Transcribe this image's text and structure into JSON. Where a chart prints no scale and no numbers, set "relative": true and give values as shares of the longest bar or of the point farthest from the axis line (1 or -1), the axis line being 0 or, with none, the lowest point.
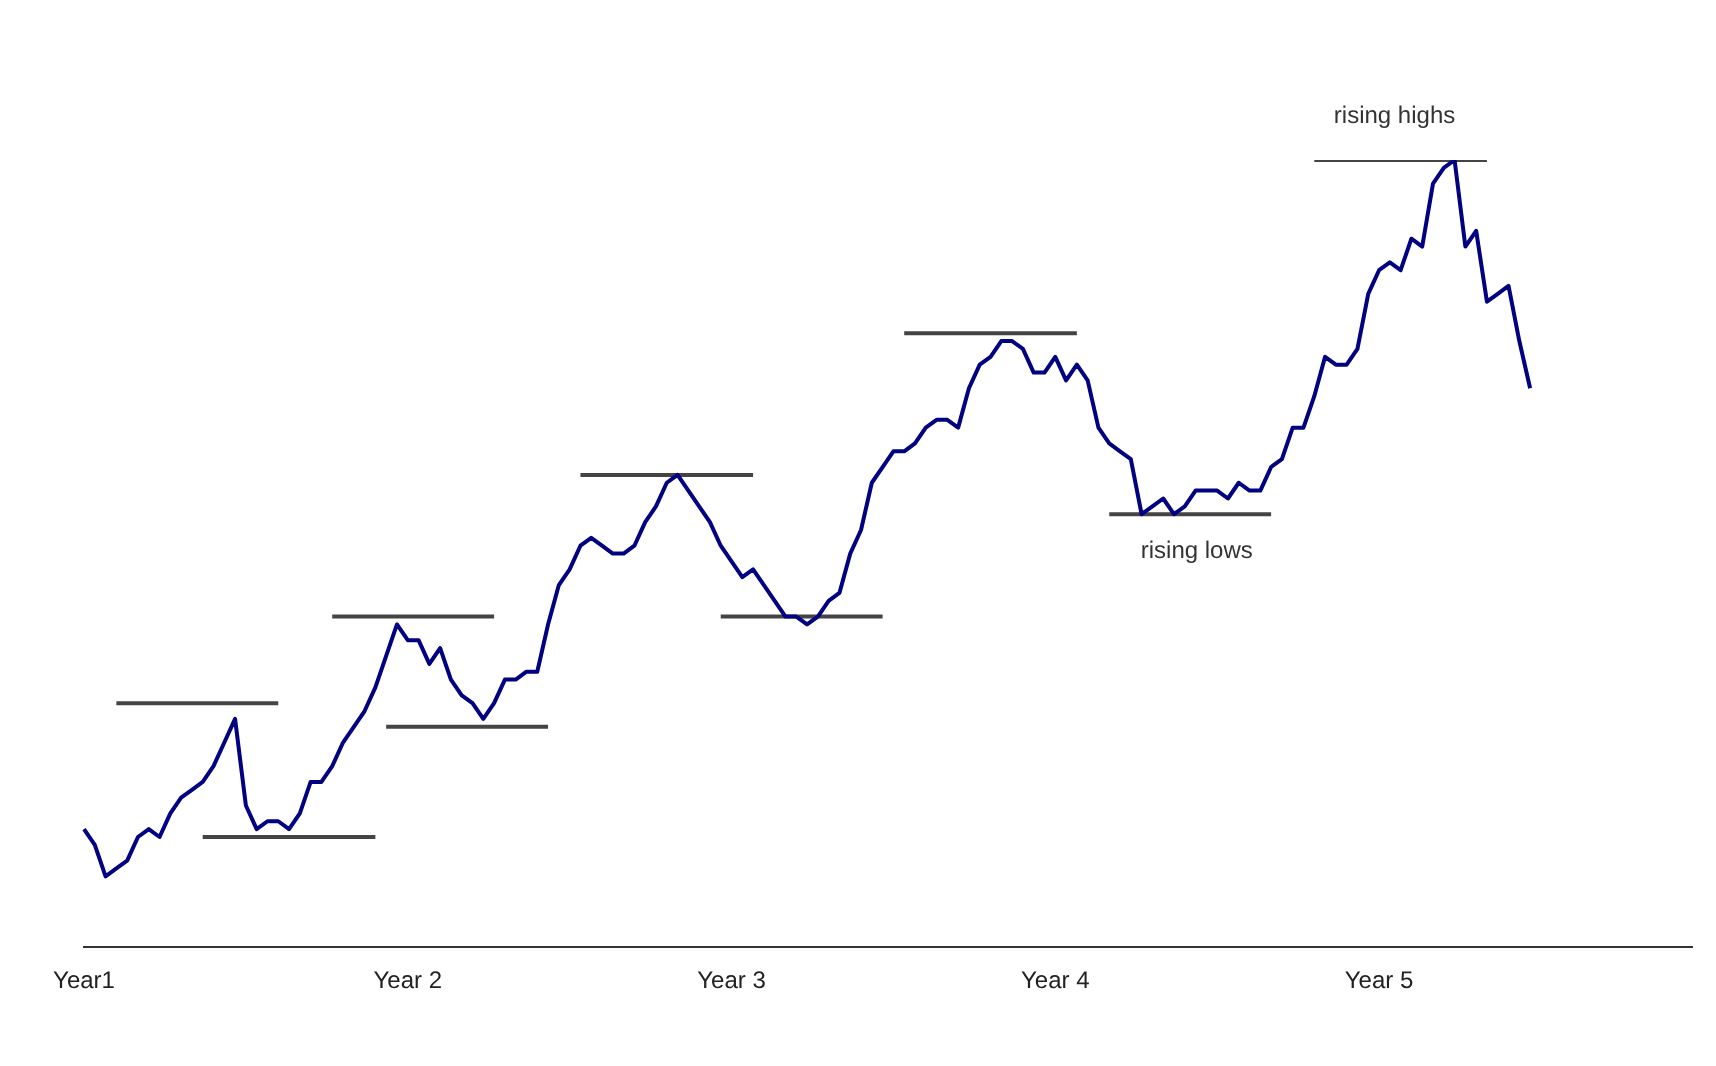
{
  "chart_data": {
    "type": "line",
    "relative": true,
    "categories": [
      "Year1",
      null,
      null,
      null,
      null,
      null,
      null,
      null,
      null,
      null,
      null,
      null,
      null,
      null,
      null,
      null,
      null,
      null,
      null,
      null,
      null,
      null,
      null,
      null,
      null,
      null,
      null,
      null,
      null,
      null,
      "Year 2",
      null,
      null,
      null,
      null,
      null,
      null,
      null,
      null,
      null,
      null,
      null,
      null,
      null,
      null,
      null,
      null,
      null,
      null,
      null,
      null,
      null,
      null,
      null,
      null,
      null,
      null,
      null,
      null,
      null,
      "Year 3",
      null,
      null,
      null,
      null,
      null,
      null,
      null,
      null,
      null,
      null,
      null,
      null,
      null,
      null,
      null,
      null,
      null,
      null,
      null,
      null,
      null,
      null,
      null,
      null,
      null,
      null,
      null,
      null,
      null,
      "Year 4",
      null,
      null,
      null,
      null,
      null,
      null,
      null,
      null,
      null,
      null,
      null,
      null,
      null,
      null,
      null,
      null,
      null,
      null,
      null,
      null,
      null,
      null,
      null,
      null,
      null,
      null,
      null,
      null,
      null,
      "Year 5",
      null,
      null,
      null,
      null,
      null,
      null,
      null,
      null,
      null,
      null,
      null,
      null,
      null,
      null,
      null,
      null,
      null,
      null,
      null,
      null,
      null,
      null,
      null,
      null,
      null,
      null,
      null,
      null,
      null
    ],
    "grid": false,
    "legend": false,
    "marker": "none",
    "line_style": "solid",
    "series": [
      {
        "color": "#000080",
        "values": [
          0.15,
          0.13,
          0.09,
          0.1,
          0.11,
          0.14,
          0.15,
          0.14,
          0.17,
          0.19,
          0.2,
          0.21,
          0.23,
          0.26,
          0.29,
          0.18,
          0.15,
          0.16,
          0.16,
          0.15,
          0.17,
          0.21,
          0.21,
          0.23,
          0.26,
          0.28,
          0.3,
          0.33,
          0.37,
          0.41,
          0.39,
          0.39,
          0.36,
          0.38,
          0.34,
          0.32,
          0.31,
          0.29,
          0.31,
          0.34,
          0.34,
          0.35,
          0.35,
          0.41,
          0.46,
          0.48,
          0.51,
          0.52,
          0.51,
          0.5,
          0.5,
          0.51,
          0.54,
          0.56,
          0.59,
          0.6,
          0.58,
          0.56,
          0.54,
          0.51,
          0.49,
          0.47,
          0.48,
          0.46,
          0.44,
          0.42,
          0.42,
          0.41,
          0.42,
          0.44,
          0.45,
          0.5,
          0.53,
          0.59,
          0.61,
          0.63,
          0.63,
          0.64,
          0.66,
          0.67,
          0.67,
          0.66,
          0.71,
          0.74,
          0.75,
          0.77,
          0.77,
          0.76,
          0.73,
          0.73,
          0.75,
          0.72,
          0.74,
          0.72,
          0.66,
          0.64,
          0.63,
          0.62,
          0.55,
          0.56,
          0.57,
          0.55,
          0.56,
          0.58,
          0.58,
          0.58,
          0.57,
          0.59,
          0.58,
          0.58,
          0.61,
          0.62,
          0.66,
          0.66,
          0.7,
          0.75,
          0.74,
          0.74,
          0.76,
          0.83,
          0.86,
          0.87,
          0.86,
          0.9,
          0.89,
          0.97,
          0.99,
          1.0,
          0.89,
          0.91,
          0.82,
          0.83,
          0.84,
          0.77,
          0.71,
          null,
          null,
          null,
          null,
          null,
          null,
          null,
          null,
          null,
          null,
          null,
          null,
          null,
          null,
          null
        ]
      },
      {
        "type": "line",
        "color": "#444444",
        "values": [
          null,
          null,
          null,
          0.31,
          0.31,
          0.31,
          0.31,
          0.31,
          0.31,
          0.31,
          0.31,
          0.31,
          0.31,
          0.31,
          0.31,
          0.31,
          0.31,
          0.31,
          0.31,
          null,
          null,
          null,
          null,
          null,
          null,
          null,
          null,
          null,
          null,
          null,
          null,
          null,
          null,
          null,
          null,
          null,
          null,
          null,
          null,
          null,
          null,
          null,
          null,
          null,
          null,
          null,
          null,
          null,
          null,
          null,
          null,
          null,
          null,
          null,
          null,
          null,
          null,
          null,
          null,
          null,
          null,
          null,
          null,
          null,
          null,
          null,
          null,
          null,
          null,
          null,
          null,
          null,
          null,
          null,
          null,
          null,
          null,
          null,
          null,
          null,
          null,
          null,
          null,
          null,
          null,
          null,
          null,
          null,
          null,
          null,
          null,
          null,
          null,
          null,
          null,
          null,
          null,
          null,
          null,
          null,
          null,
          null,
          null,
          null,
          null,
          null,
          null,
          null,
          null,
          null,
          null,
          null,
          null,
          null,
          null,
          null,
          null,
          null,
          null,
          null,
          null,
          null,
          null,
          null,
          null,
          null,
          null,
          null,
          null,
          null,
          null,
          null,
          null,
          null,
          null,
          null,
          null,
          null,
          null,
          null,
          null,
          null,
          null,
          null,
          null,
          null,
          null,
          null,
          null,
          null
        ]
      },
      {
        "type": "line",
        "color": "#444444",
        "values": [
          null,
          null,
          null,
          null,
          null,
          null,
          null,
          null,
          null,
          null,
          null,
          0.14,
          0.14,
          0.14,
          0.14,
          0.14,
          0.14,
          0.14,
          0.14,
          0.14,
          0.14,
          0.14,
          0.14,
          0.14,
          0.14,
          0.14,
          0.14,
          0.14,
          null,
          null,
          null,
          null,
          null,
          null,
          null,
          null,
          null,
          null,
          null,
          null,
          null,
          null,
          null,
          null,
          null,
          null,
          null,
          null,
          null,
          null,
          null,
          null,
          null,
          null,
          null,
          null,
          null,
          null,
          null,
          null,
          null,
          null,
          null,
          null,
          null,
          null,
          null,
          null,
          null,
          null,
          null,
          null,
          null,
          null,
          null,
          null,
          null,
          null,
          null,
          null,
          null,
          null,
          null,
          null,
          null,
          null,
          null,
          null,
          null,
          null,
          null,
          null,
          null,
          null,
          null,
          null,
          null,
          null,
          null,
          null,
          null,
          null,
          null,
          null,
          null,
          null,
          null,
          null,
          null,
          null,
          null,
          null,
          null,
          null,
          null,
          null,
          null,
          null,
          null,
          null,
          null,
          null,
          null,
          null,
          null,
          null,
          null,
          null,
          null,
          null,
          null,
          null,
          null,
          null,
          null,
          null,
          null,
          null,
          null,
          null,
          null,
          null,
          null,
          null,
          null,
          null,
          null,
          null,
          null,
          null
        ]
      },
      {
        "type": "line",
        "color": "#444444",
        "values": [
          null,
          null,
          null,
          null,
          null,
          null,
          null,
          null,
          null,
          null,
          null,
          null,
          null,
          null,
          null,
          null,
          null,
          null,
          null,
          null,
          null,
          null,
          null,
          0.42,
          0.42,
          0.42,
          0.42,
          0.42,
          0.42,
          0.42,
          0.42,
          0.42,
          0.42,
          0.42,
          0.42,
          0.42,
          0.42,
          0.42,
          0.42,
          null,
          null,
          null,
          null,
          null,
          null,
          null,
          null,
          null,
          null,
          null,
          null,
          null,
          null,
          null,
          null,
          null,
          null,
          null,
          null,
          null,
          null,
          null,
          null,
          null,
          null,
          null,
          null,
          null,
          null,
          null,
          null,
          null,
          null,
          null,
          null,
          null,
          null,
          null,
          null,
          null,
          null,
          null,
          null,
          null,
          null,
          null,
          null,
          null,
          null,
          null,
          null,
          null,
          null,
          null,
          null,
          null,
          null,
          null,
          null,
          null,
          null,
          null,
          null,
          null,
          null,
          null,
          null,
          null,
          null,
          null,
          null,
          null,
          null,
          null,
          null,
          null,
          null,
          null,
          null,
          null,
          null,
          null,
          null,
          null,
          null,
          null,
          null,
          null,
          null,
          null,
          null,
          null,
          null,
          null,
          null,
          null,
          null,
          null,
          null,
          null,
          null,
          null,
          null,
          null,
          null,
          null,
          null,
          null,
          null,
          null
        ]
      },
      {
        "type": "line",
        "color": "#444444",
        "values": [
          null,
          null,
          null,
          null,
          null,
          null,
          null,
          null,
          null,
          null,
          null,
          null,
          null,
          null,
          null,
          null,
          null,
          null,
          null,
          null,
          null,
          null,
          null,
          null,
          null,
          null,
          null,
          null,
          0.28,
          0.28,
          0.28,
          0.28,
          0.28,
          0.28,
          0.28,
          0.28,
          0.28,
          0.28,
          0.28,
          0.28,
          0.28,
          0.28,
          0.28,
          0.28,
          null,
          null,
          null,
          null,
          null,
          null,
          null,
          null,
          null,
          null,
          null,
          null,
          null,
          null,
          null,
          null,
          null,
          null,
          null,
          null,
          null,
          null,
          null,
          null,
          null,
          null,
          null,
          null,
          null,
          null,
          null,
          null,
          null,
          null,
          null,
          null,
          null,
          null,
          null,
          null,
          null,
          null,
          null,
          null,
          null,
          null,
          null,
          null,
          null,
          null,
          null,
          null,
          null,
          null,
          null,
          null,
          null,
          null,
          null,
          null,
          null,
          null,
          null,
          null,
          null,
          null,
          null,
          null,
          null,
          null,
          null,
          null,
          null,
          null,
          null,
          null,
          null,
          null,
          null,
          null,
          null,
          null,
          null,
          null,
          null,
          null,
          null,
          null,
          null,
          null,
          null,
          null,
          null,
          null,
          null,
          null,
          null,
          null,
          null,
          null,
          null,
          null,
          null,
          null,
          null,
          null
        ]
      },
      {
        "type": "line",
        "color": "#444444",
        "values": [
          null,
          null,
          null,
          null,
          null,
          null,
          null,
          null,
          null,
          null,
          null,
          null,
          null,
          null,
          null,
          null,
          null,
          null,
          null,
          null,
          null,
          null,
          null,
          null,
          null,
          null,
          null,
          null,
          null,
          null,
          null,
          null,
          null,
          null,
          null,
          null,
          null,
          null,
          null,
          null,
          null,
          null,
          null,
          null,
          null,
          null,
          0.6,
          0.6,
          0.6,
          0.6,
          0.6,
          0.6,
          0.6,
          0.6,
          0.6,
          0.6,
          0.6,
          0.6,
          0.6,
          0.6,
          0.6,
          0.6,
          0.6,
          null,
          null,
          null,
          null,
          null,
          null,
          null,
          null,
          null,
          null,
          null,
          null,
          null,
          null,
          null,
          null,
          null,
          null,
          null,
          null,
          null,
          null,
          null,
          null,
          null,
          null,
          null,
          null,
          null,
          null,
          null,
          null,
          null,
          null,
          null,
          null,
          null,
          null,
          null,
          null,
          null,
          null,
          null,
          null,
          null,
          null,
          null,
          null,
          null,
          null,
          null,
          null,
          null,
          null,
          null,
          null,
          null,
          null,
          null,
          null,
          null,
          null,
          null,
          null,
          null,
          null,
          null,
          null,
          null,
          null,
          null,
          null,
          null,
          null,
          null,
          null,
          null,
          null,
          null,
          null,
          null,
          null,
          null,
          null,
          null,
          null,
          null
        ]
      },
      {
        "type": "line",
        "color": "#444444",
        "values": [
          null,
          null,
          null,
          null,
          null,
          null,
          null,
          null,
          null,
          null,
          null,
          null,
          null,
          null,
          null,
          null,
          null,
          null,
          null,
          null,
          null,
          null,
          null,
          null,
          null,
          null,
          null,
          null,
          null,
          null,
          null,
          null,
          null,
          null,
          null,
          null,
          null,
          null,
          null,
          null,
          null,
          null,
          null,
          null,
          null,
          null,
          null,
          null,
          null,
          null,
          null,
          null,
          null,
          null,
          null,
          null,
          null,
          null,
          null,
          0.42,
          0.42,
          0.42,
          0.42,
          0.42,
          0.42,
          0.42,
          0.42,
          0.42,
          0.42,
          0.42,
          0.42,
          0.42,
          0.42,
          0.42,
          0.42,
          null,
          null,
          null,
          null,
          null,
          null,
          null,
          null,
          null,
          null,
          null,
          null,
          null,
          null,
          null,
          null,
          null,
          null,
          null,
          null,
          null,
          null,
          null,
          null,
          null,
          null,
          null,
          null,
          null,
          null,
          null,
          null,
          null,
          null,
          null,
          null,
          null,
          null,
          null,
          null,
          null,
          null,
          null,
          null,
          null,
          null,
          null,
          null,
          null,
          null,
          null,
          null,
          null,
          null,
          null,
          null,
          null,
          null,
          null,
          null,
          null,
          null,
          null,
          null,
          null,
          null,
          null,
          null,
          null,
          null,
          null,
          null,
          null,
          null,
          null
        ]
      },
      {
        "type": "line",
        "color": "#444444",
        "values": [
          null,
          null,
          null,
          null,
          null,
          null,
          null,
          null,
          null,
          null,
          null,
          null,
          null,
          null,
          null,
          null,
          null,
          null,
          null,
          null,
          null,
          null,
          null,
          null,
          null,
          null,
          null,
          null,
          null,
          null,
          null,
          null,
          null,
          null,
          null,
          null,
          null,
          null,
          null,
          null,
          null,
          null,
          null,
          null,
          null,
          null,
          null,
          null,
          null,
          null,
          null,
          null,
          null,
          null,
          null,
          null,
          null,
          null,
          null,
          null,
          null,
          null,
          null,
          null,
          null,
          null,
          null,
          null,
          null,
          null,
          null,
          null,
          null,
          null,
          null,
          null,
          0.78,
          0.78,
          0.78,
          0.78,
          0.78,
          0.78,
          0.78,
          0.78,
          0.78,
          0.78,
          0.78,
          0.78,
          0.78,
          0.78,
          0.78,
          0.78,
          0.78,
          null,
          null,
          null,
          null,
          null,
          null,
          null,
          null,
          null,
          null,
          null,
          null,
          null,
          null,
          null,
          null,
          null,
          null,
          null,
          null,
          null,
          null,
          null,
          null,
          null,
          null,
          null,
          null,
          null,
          null,
          null,
          null,
          null,
          null,
          null,
          null,
          null,
          null,
          null,
          null,
          null,
          null,
          null,
          null,
          null,
          null,
          null,
          null,
          null,
          null,
          null,
          null,
          null,
          null,
          null,
          null,
          null
        ]
      },
      {
        "type": "line",
        "color": "#444444",
        "values": [
          null,
          null,
          null,
          null,
          null,
          null,
          null,
          null,
          null,
          null,
          null,
          null,
          null,
          null,
          null,
          null,
          null,
          null,
          null,
          null,
          null,
          null,
          null,
          null,
          null,
          null,
          null,
          null,
          null,
          null,
          null,
          null,
          null,
          null,
          null,
          null,
          null,
          null,
          null,
          null,
          null,
          null,
          null,
          null,
          null,
          null,
          null,
          null,
          null,
          null,
          null,
          null,
          null,
          null,
          null,
          null,
          null,
          null,
          null,
          null,
          null,
          null,
          null,
          null,
          null,
          null,
          null,
          null,
          null,
          null,
          null,
          null,
          null,
          null,
          null,
          null,
          null,
          null,
          null,
          null,
          null,
          null,
          null,
          null,
          null,
          null,
          null,
          null,
          null,
          null,
          null,
          null,
          null,
          null,
          null,
          0.55,
          0.55,
          0.55,
          0.55,
          0.55,
          0.55,
          0.55,
          0.55,
          0.55,
          0.55,
          0.55,
          0.55,
          0.55,
          0.55,
          0.55,
          0.55,
          null,
          null,
          null,
          null,
          null,
          null,
          null,
          null,
          null,
          null,
          null,
          null,
          null,
          null,
          null,
          null,
          null,
          null,
          null,
          null,
          null,
          null,
          null,
          null,
          null,
          null,
          null,
          null,
          null,
          null,
          null,
          null,
          null,
          null,
          null,
          null,
          null,
          null,
          null
        ]
      },
      {
        "type": "line",
        "color": "#444444",
        "values": [
          null,
          null,
          null,
          null,
          null,
          null,
          null,
          null,
          null,
          null,
          null,
          null,
          null,
          null,
          null,
          null,
          null,
          null,
          null,
          null,
          null,
          null,
          null,
          null,
          null,
          null,
          null,
          null,
          null,
          null,
          null,
          null,
          null,
          null,
          null,
          null,
          null,
          null,
          null,
          null,
          null,
          null,
          null,
          null,
          null,
          null,
          null,
          null,
          null,
          null,
          null,
          null,
          null,
          null,
          null,
          null,
          null,
          null,
          null,
          null,
          null,
          null,
          null,
          null,
          null,
          null,
          null,
          null,
          null,
          null,
          null,
          null,
          null,
          null,
          null,
          null,
          null,
          null,
          null,
          null,
          null,
          null,
          null,
          null,
          null,
          null,
          null,
          null,
          null,
          null,
          null,
          null,
          null,
          null,
          null,
          null,
          null,
          null,
          null,
          null,
          null,
          null,
          null,
          null,
          null,
          null,
          null,
          null,
          null,
          null,
          null,
          null,
          null,
          null,
          1,
          1,
          1,
          1,
          1,
          1,
          1,
          1,
          1,
          1,
          1,
          1,
          1,
          1,
          1,
          1,
          1,
          null,
          null,
          null,
          null,
          null,
          null,
          null,
          null,
          null,
          null,
          null,
          null,
          null,
          null,
          null,
          null,
          null,
          null,
          null
        ]
      }
    ],
    "annotations": [
      "rising highs",
      "rising lows"
    ]
  }
}
